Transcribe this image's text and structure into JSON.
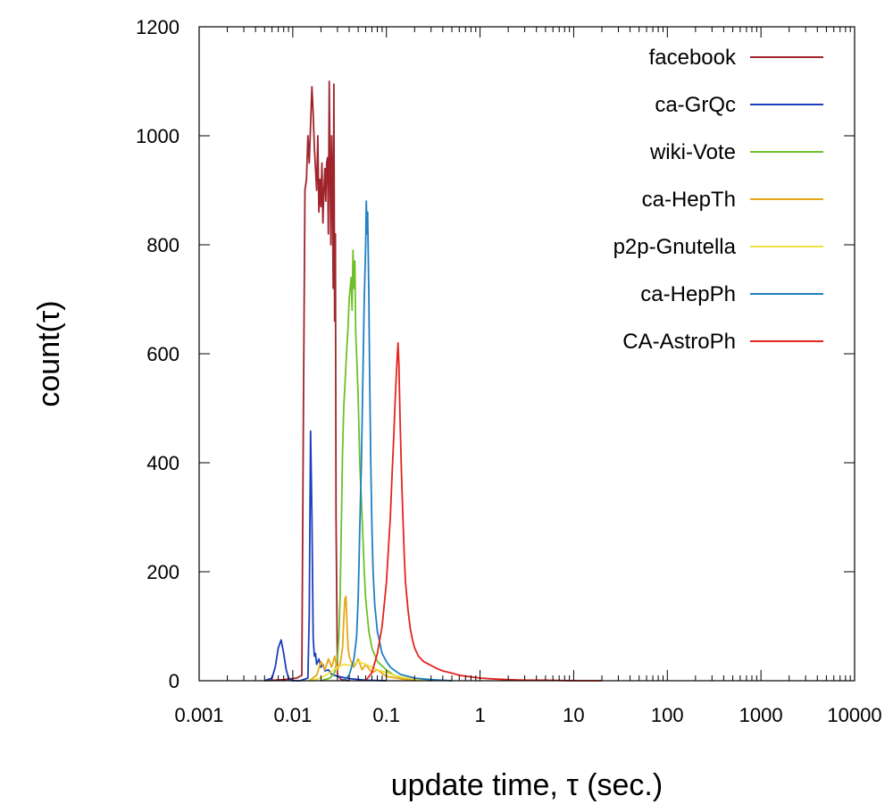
{
  "chart_data": {
    "type": "line",
    "xlabel": "update time, τ (sec.)",
    "ylabel": "count(τ)",
    "x_scale": "log",
    "xlim": [
      0.001,
      10000
    ],
    "ylim": [
      0,
      1200
    ],
    "x_ticks": [
      0.001,
      0.01,
      0.1,
      1,
      10,
      100,
      1000,
      10000
    ],
    "x_tick_labels": [
      "0.001",
      "0.01",
      "0.1",
      "1",
      "10",
      "100",
      "1000",
      "10000"
    ],
    "y_ticks": [
      0,
      200,
      400,
      600,
      800,
      1000,
      1200
    ],
    "y_tick_labels": [
      "0",
      "200",
      "400",
      "600",
      "800",
      "1000",
      "1200"
    ],
    "grid": false,
    "legend_position": "top-right",
    "series": [
      {
        "name": "facebook",
        "color": "#a0242c",
        "x": [
          0.005,
          0.008,
          0.011,
          0.0125,
          0.013,
          0.0135,
          0.014,
          0.0145,
          0.015,
          0.0155,
          0.016,
          0.0165,
          0.017,
          0.0175,
          0.018,
          0.0185,
          0.019,
          0.0195,
          0.02,
          0.0205,
          0.021,
          0.0215,
          0.022,
          0.0225,
          0.023,
          0.0235,
          0.024,
          0.0245,
          0.025,
          0.0255,
          0.026,
          0.0265,
          0.027,
          0.0275,
          0.028,
          0.0285,
          0.029,
          0.03,
          0.033,
          0.04
        ],
        "y": [
          0,
          2,
          5,
          10,
          500,
          900,
          920,
          1000,
          950,
          1020,
          1090,
          1040,
          980,
          940,
          900,
          1000,
          860,
          920,
          870,
          950,
          840,
          900,
          940,
          880,
          950,
          960,
          820,
          1100,
          940,
          800,
          1000,
          920,
          720,
          1095,
          660,
          820,
          300,
          10,
          2,
          0
        ]
      },
      {
        "name": "ca-GrQc",
        "color": "#1a3fbf",
        "x": [
          0.005,
          0.006,
          0.0065,
          0.007,
          0.0075,
          0.008,
          0.0085,
          0.009,
          0.0095,
          0.01,
          0.012,
          0.0145,
          0.015,
          0.0155,
          0.016,
          0.0165,
          0.017,
          0.0175,
          0.018,
          0.019,
          0.02,
          0.021,
          0.022,
          0.024,
          0.026,
          0.03,
          0.04,
          0.06,
          0.1
        ],
        "y": [
          0,
          5,
          25,
          60,
          75,
          50,
          20,
          5,
          2,
          0,
          0,
          5,
          120,
          458,
          300,
          80,
          45,
          50,
          30,
          40,
          25,
          30,
          18,
          20,
          12,
          8,
          4,
          1,
          0
        ]
      },
      {
        "name": "wiki-Vote",
        "color": "#6fbf2a",
        "x": [
          0.02,
          0.025,
          0.028,
          0.03,
          0.031,
          0.032,
          0.033,
          0.034,
          0.035,
          0.036,
          0.037,
          0.038,
          0.039,
          0.04,
          0.041,
          0.042,
          0.043,
          0.044,
          0.045,
          0.046,
          0.047,
          0.048,
          0.05,
          0.052,
          0.055,
          0.058,
          0.06,
          0.065,
          0.07,
          0.08,
          0.1,
          0.12,
          0.15,
          0.2,
          0.3
        ],
        "y": [
          0,
          5,
          15,
          40,
          80,
          150,
          280,
          420,
          500,
          540,
          580,
          620,
          650,
          700,
          720,
          740,
          680,
          790,
          720,
          770,
          640,
          600,
          520,
          400,
          300,
          200,
          150,
          90,
          60,
          35,
          20,
          10,
          5,
          2,
          0
        ]
      },
      {
        "name": "ca-HepTh",
        "color": "#e6a817",
        "x": [
          0.015,
          0.018,
          0.02,
          0.022,
          0.024,
          0.026,
          0.028,
          0.03,
          0.032,
          0.034,
          0.035,
          0.036,
          0.037,
          0.038,
          0.039,
          0.04,
          0.042,
          0.045,
          0.05,
          0.055,
          0.06,
          0.07,
          0.08,
          0.1,
          0.15,
          0.2
        ],
        "y": [
          0,
          10,
          35,
          20,
          40,
          25,
          45,
          20,
          30,
          60,
          110,
          150,
          155,
          100,
          60,
          45,
          35,
          25,
          40,
          20,
          30,
          15,
          20,
          8,
          3,
          0
        ]
      },
      {
        "name": "p2p-Gnutella",
        "color": "#f0e040",
        "x": [
          0.015,
          0.02,
          0.025,
          0.03,
          0.035,
          0.04,
          0.05,
          0.06,
          0.07,
          0.08,
          0.1,
          0.12,
          0.15,
          0.2,
          0.3
        ],
        "y": [
          0,
          5,
          15,
          25,
          30,
          28,
          35,
          30,
          25,
          20,
          15,
          10,
          6,
          3,
          0
        ]
      },
      {
        "name": "ca-HepPh",
        "color": "#1f7fc4",
        "x": [
          0.035,
          0.04,
          0.045,
          0.048,
          0.05,
          0.052,
          0.054,
          0.056,
          0.058,
          0.06,
          0.061,
          0.062,
          0.063,
          0.064,
          0.065,
          0.066,
          0.068,
          0.07,
          0.072,
          0.075,
          0.08,
          0.085,
          0.09,
          0.1,
          0.11,
          0.12,
          0.14,
          0.17,
          0.2,
          0.3,
          0.5
        ],
        "y": [
          0,
          10,
          40,
          80,
          150,
          280,
          400,
          550,
          700,
          800,
          880,
          820,
          860,
          780,
          700,
          580,
          400,
          280,
          200,
          140,
          90,
          70,
          50,
          35,
          25,
          20,
          12,
          8,
          5,
          2,
          0
        ]
      },
      {
        "name": "CA-AstroPh",
        "color": "#e3241f",
        "x": [
          0.06,
          0.07,
          0.08,
          0.09,
          0.1,
          0.105,
          0.11,
          0.115,
          0.12,
          0.125,
          0.13,
          0.133,
          0.136,
          0.14,
          0.145,
          0.15,
          0.155,
          0.16,
          0.17,
          0.18,
          0.19,
          0.2,
          0.22,
          0.25,
          0.3,
          0.35,
          0.4,
          0.5,
          0.6,
          0.8,
          1,
          1.5,
          2,
          3,
          5,
          10,
          20
        ],
        "y": [
          0,
          15,
          50,
          100,
          180,
          240,
          300,
          380,
          450,
          530,
          590,
          620,
          580,
          480,
          380,
          300,
          230,
          180,
          130,
          95,
          75,
          60,
          45,
          35,
          28,
          22,
          18,
          14,
          10,
          7,
          5,
          3,
          2,
          1,
          1,
          0,
          0
        ]
      }
    ]
  }
}
